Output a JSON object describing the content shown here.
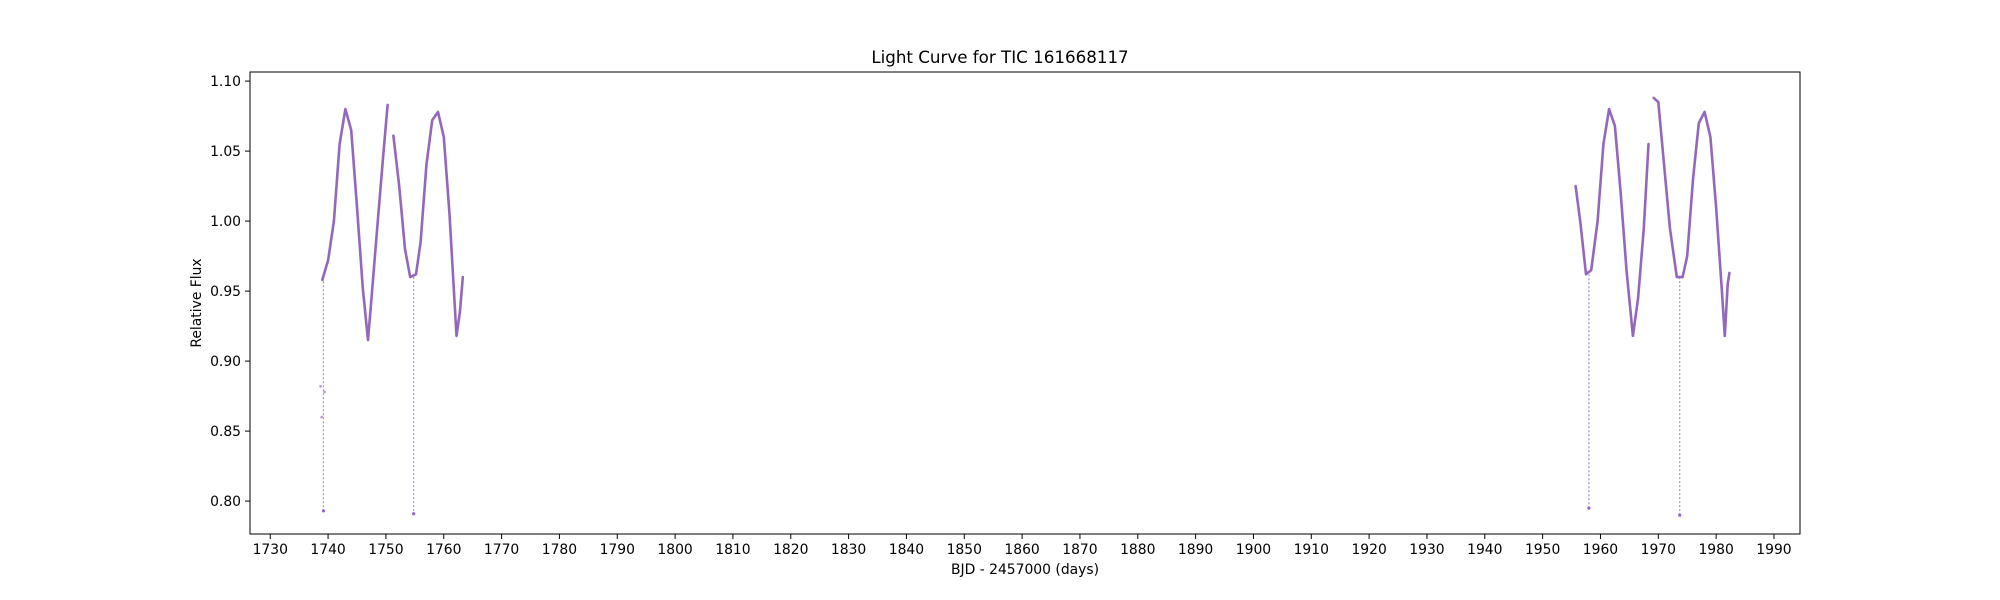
{
  "chart_data": {
    "type": "scatter",
    "title": "Light Curve for TIC 161668117",
    "xlabel": "BJD - 2457000 (days)",
    "ylabel": "Relative Flux",
    "xlim": [
      1726.5,
      1994.5
    ],
    "ylim": [
      0.7765,
      1.1065
    ],
    "xticks": [
      1730,
      1740,
      1750,
      1760,
      1770,
      1780,
      1790,
      1800,
      1810,
      1820,
      1830,
      1840,
      1850,
      1860,
      1870,
      1880,
      1890,
      1900,
      1910,
      1920,
      1930,
      1940,
      1950,
      1960,
      1970,
      1980,
      1990
    ],
    "yticks": [
      0.8,
      0.85,
      0.9,
      0.95,
      1.0,
      1.05,
      1.1
    ],
    "ytick_labels": [
      "0.80",
      "0.85",
      "0.90",
      "0.95",
      "1.00",
      "1.05",
      "1.10"
    ],
    "grid": false,
    "color": "#9467bd",
    "series": [
      {
        "segments": [
          [
            [
              1739.0,
              0.958
            ],
            [
              1740.0,
              0.972
            ],
            [
              1741.0,
              1.0
            ],
            [
              1742.0,
              1.055
            ],
            [
              1743.0,
              1.08
            ],
            [
              1744.0,
              1.065
            ],
            [
              1745.0,
              1.01
            ],
            [
              1746.0,
              0.952
            ],
            [
              1746.9,
              0.915
            ],
            [
              1747.5,
              0.945
            ],
            [
              1748.5,
              0.995
            ],
            [
              1749.5,
              1.045
            ],
            [
              1750.3,
              1.083
            ]
          ],
          [
            [
              1751.3,
              1.061
            ],
            [
              1752.3,
              1.025
            ],
            [
              1753.3,
              0.98
            ],
            [
              1754.2,
              0.96
            ],
            [
              1755.2,
              0.962
            ],
            [
              1756.0,
              0.985
            ],
            [
              1757.0,
              1.04
            ],
            [
              1758.0,
              1.072
            ],
            [
              1759.0,
              1.078
            ],
            [
              1760.0,
              1.06
            ],
            [
              1761.0,
              1.005
            ],
            [
              1762.2,
              0.918
            ],
            [
              1762.8,
              0.935
            ],
            [
              1763.3,
              0.96
            ]
          ],
          [
            [
              1955.7,
              1.025
            ],
            [
              1956.5,
              1.0
            ],
            [
              1957.5,
              0.962
            ],
            [
              1958.4,
              0.965
            ],
            [
              1959.5,
              1.0
            ],
            [
              1960.5,
              1.055
            ],
            [
              1961.5,
              1.08
            ],
            [
              1962.5,
              1.068
            ],
            [
              1963.5,
              1.02
            ],
            [
              1964.5,
              0.965
            ],
            [
              1965.6,
              0.918
            ],
            [
              1966.5,
              0.945
            ],
            [
              1967.5,
              0.995
            ],
            [
              1968.3,
              1.055
            ]
          ],
          [
            [
              1969.2,
              1.088
            ],
            [
              1970.0,
              1.085
            ],
            [
              1971.0,
              1.04
            ],
            [
              1972.0,
              0.995
            ],
            [
              1973.2,
              0.96
            ],
            [
              1974.2,
              0.96
            ],
            [
              1975.0,
              0.975
            ],
            [
              1976.0,
              1.03
            ],
            [
              1977.0,
              1.07
            ],
            [
              1978.0,
              1.078
            ],
            [
              1979.0,
              1.06
            ],
            [
              1980.0,
              1.01
            ],
            [
              1981.0,
              0.95
            ],
            [
              1981.5,
              0.918
            ],
            [
              1982.0,
              0.955
            ],
            [
              1982.3,
              0.963
            ]
          ]
        ],
        "dips": [
          [
            1739.2,
            0.957,
            0.793
          ],
          [
            1754.8,
            0.96,
            0.791
          ],
          [
            1958.0,
            0.962,
            0.795
          ],
          [
            1973.7,
            0.96,
            0.79
          ]
        ],
        "isolated_points": [
          [
            1738.7,
            0.882
          ],
          [
            1738.9,
            0.86
          ],
          [
            1739.4,
            0.878
          ]
        ]
      }
    ]
  }
}
